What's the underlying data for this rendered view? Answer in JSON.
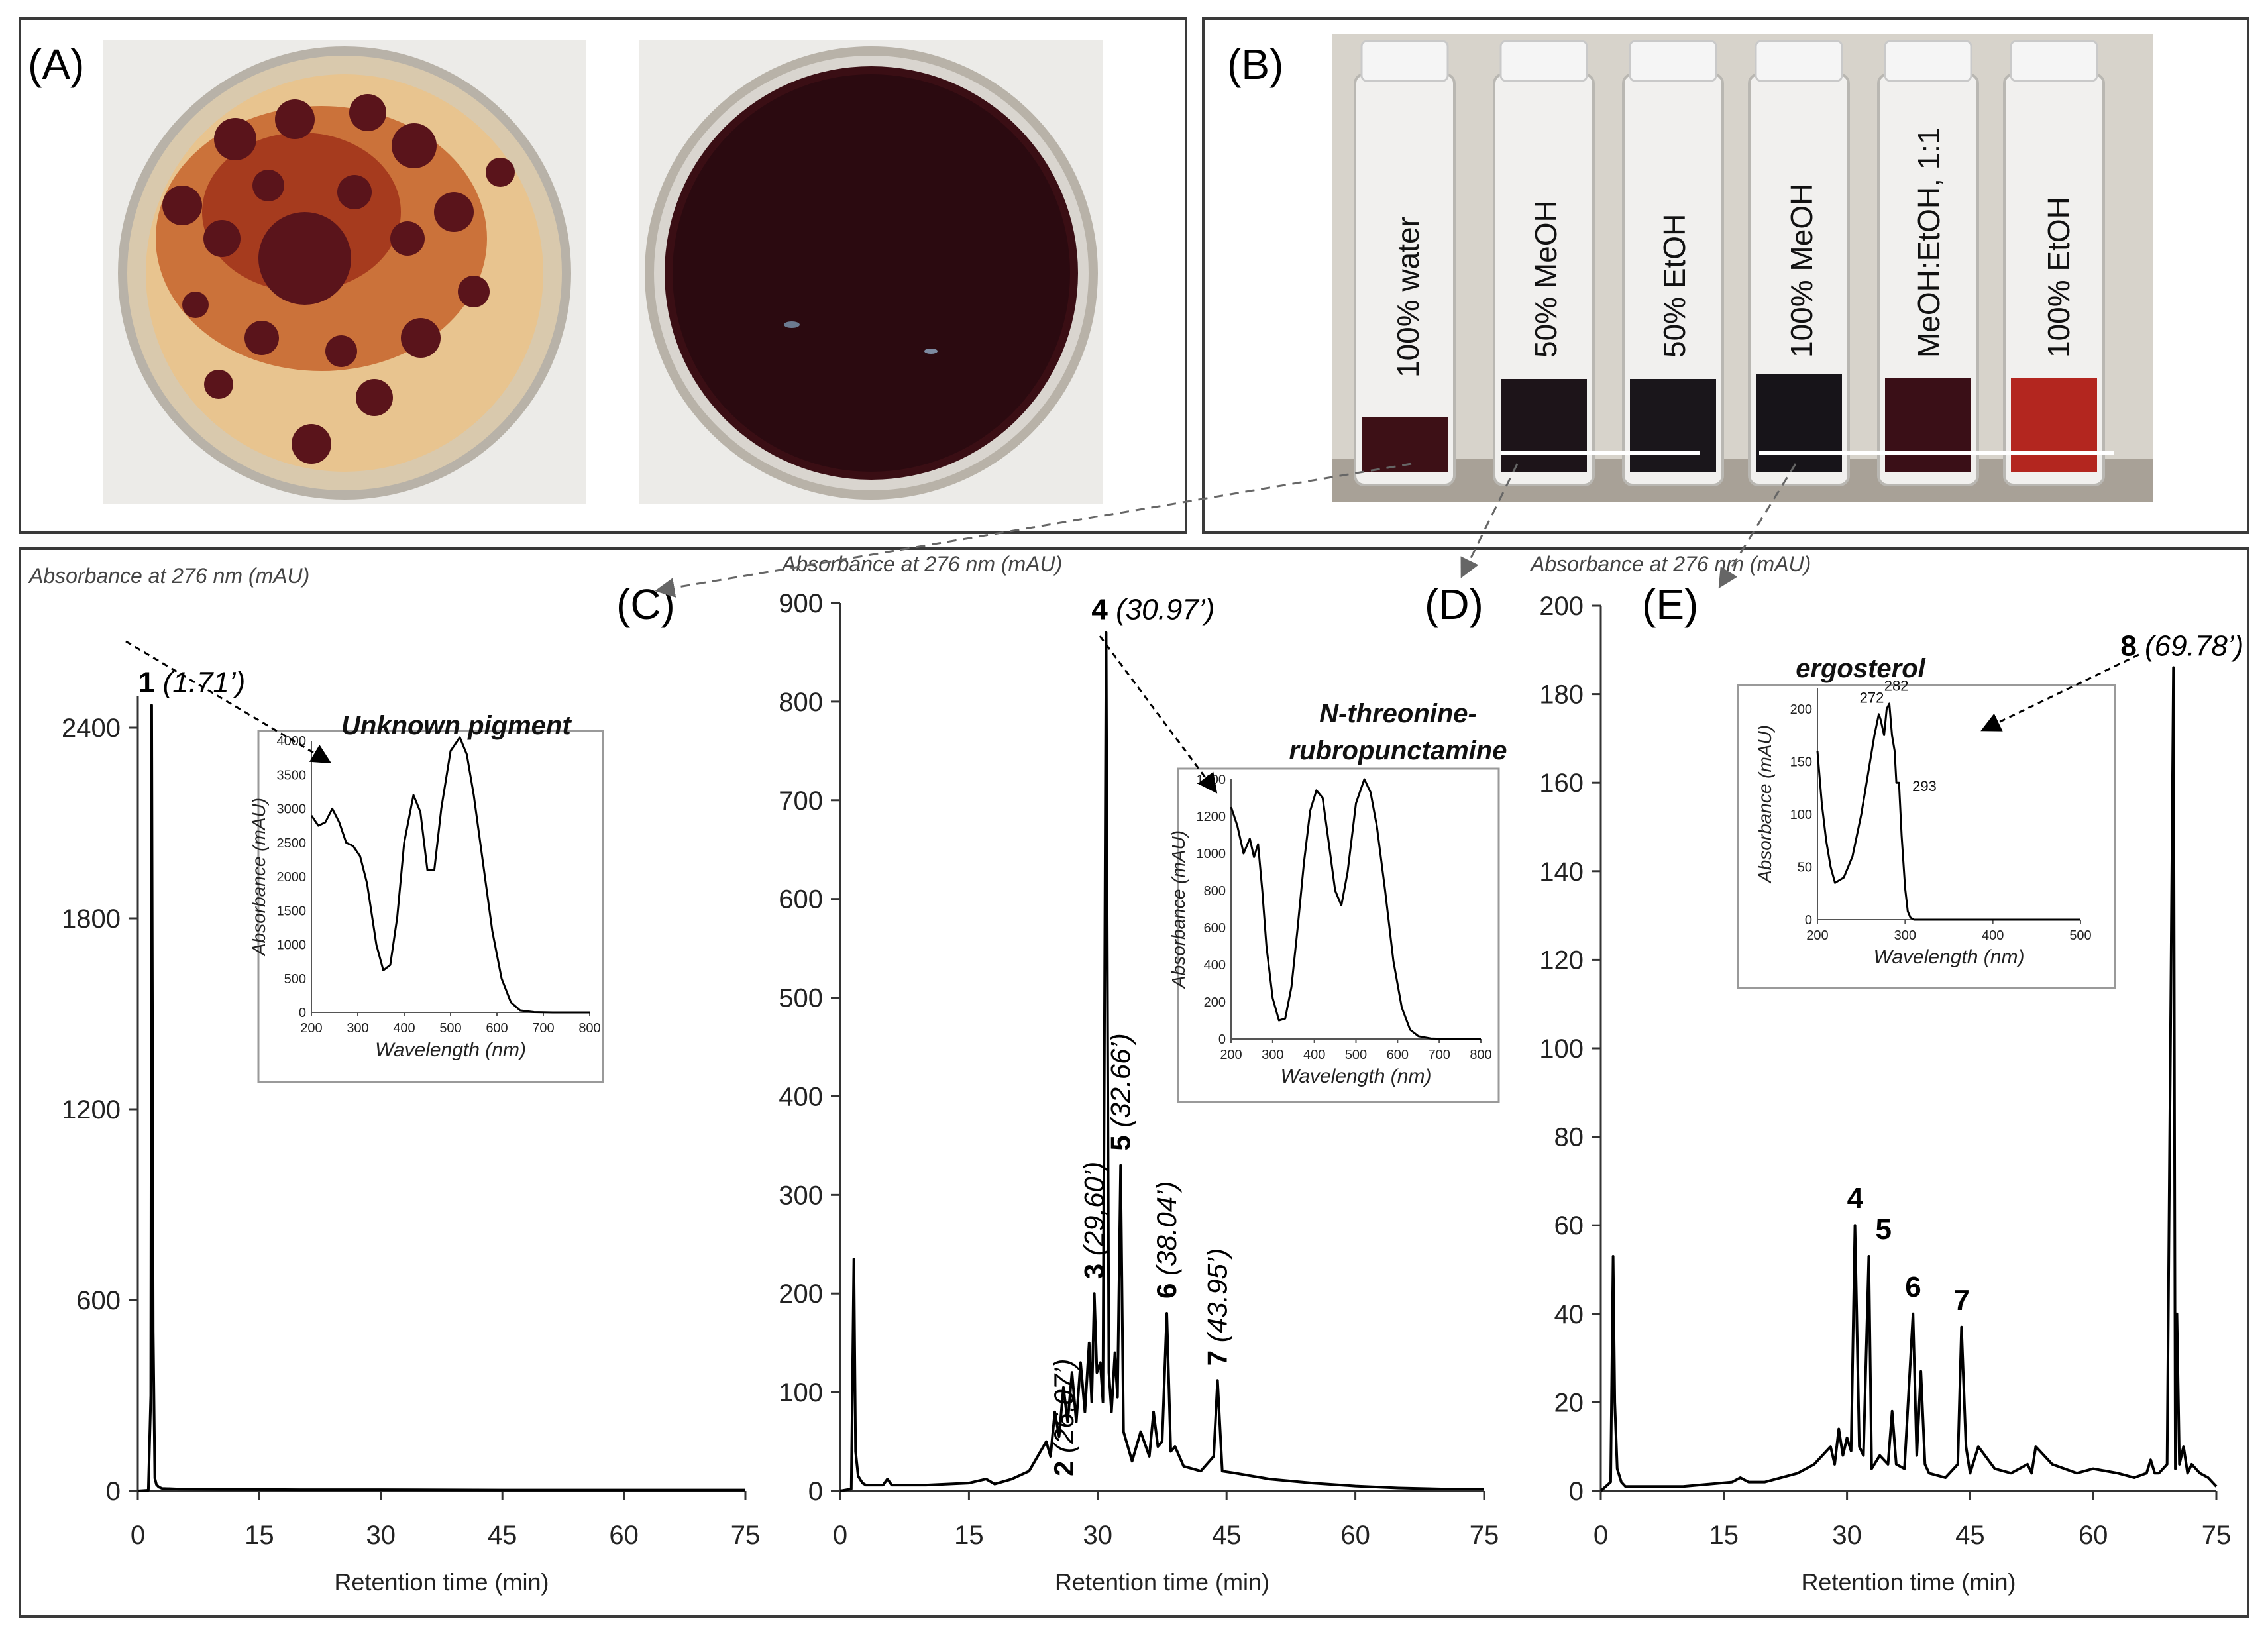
{
  "panels": {
    "A": {
      "label": "(A)"
    },
    "B": {
      "label": "(B)",
      "vials": [
        "100% water",
        "50% MeOH",
        "50% EtOH",
        "100% MeOH",
        "MeOH:EtOH, 1:1",
        "100% EtOH"
      ]
    },
    "C": {
      "label": "(C)"
    },
    "D": {
      "label": "(D)"
    },
    "E": {
      "label": "(E)"
    }
  },
  "colors": {
    "trace": "#000000",
    "frame": "#3a3a3a",
    "arrow": "#555555",
    "vial_dark": "#1a1418",
    "vial_red": "#c0392b"
  },
  "chart_data": [
    {
      "id": "C",
      "type": "line",
      "ylabel": "Absorbance at 276 nm (mAU)",
      "xlabel": "Retention time (min)",
      "xlim": [
        0,
        75
      ],
      "ylim": [
        0,
        2500
      ],
      "xticks": [
        0,
        15,
        30,
        45,
        60,
        75
      ],
      "yticks": [
        0,
        600,
        1200,
        1800,
        2400
      ],
      "series": [
        {
          "x": [
            0,
            1.3,
            1.6,
            1.71,
            1.9,
            2.1,
            2.3,
            2.6,
            3,
            5,
            10,
            20,
            30,
            45,
            60,
            75
          ],
          "y": [
            0,
            2,
            300,
            2470,
            500,
            40,
            20,
            12,
            8,
            6,
            5,
            4,
            4,
            3,
            3,
            3
          ]
        }
      ],
      "annotations": [
        {
          "bold": "1",
          "text": "(1.71’)",
          "x": 1.71
        }
      ],
      "inset": {
        "title": "Unknown pigment",
        "xlabel": "Wavelength (nm)",
        "ylabel": "Absorbance (mAU)",
        "xlim": [
          200,
          800
        ],
        "ylim": [
          0,
          4000
        ],
        "xticks": [
          200,
          300,
          400,
          500,
          600,
          700,
          800
        ],
        "yticks": [
          0,
          500,
          1000,
          1500,
          2000,
          2500,
          3000,
          3500,
          4000
        ],
        "x": [
          200,
          215,
          230,
          245,
          260,
          275,
          290,
          305,
          320,
          340,
          355,
          370,
          385,
          400,
          420,
          435,
          450,
          465,
          480,
          500,
          520,
          535,
          550,
          570,
          590,
          610,
          630,
          650,
          680,
          720,
          760,
          800
        ],
        "y": [
          2900,
          2750,
          2800,
          3000,
          2800,
          2500,
          2450,
          2300,
          1900,
          1000,
          620,
          700,
          1400,
          2500,
          3200,
          2950,
          2100,
          2100,
          3000,
          3850,
          4050,
          3800,
          3200,
          2200,
          1200,
          500,
          150,
          30,
          5,
          0,
          0,
          0
        ]
      }
    },
    {
      "id": "D",
      "type": "line",
      "ylabel": "Absorbance at 276 nm (mAU)",
      "xlabel": "Retention time (min)",
      "xlim": [
        0,
        75
      ],
      "ylim": [
        0,
        900
      ],
      "xticks": [
        0,
        15,
        30,
        45,
        60,
        75
      ],
      "yticks": [
        0,
        100,
        200,
        300,
        400,
        500,
        600,
        700,
        800,
        900
      ],
      "series": [
        {
          "x": [
            0,
            1.3,
            1.6,
            1.8,
            2.1,
            2.6,
            3,
            5,
            5.5,
            6,
            10,
            15,
            17,
            18,
            20,
            22,
            23,
            24,
            24.5,
            25,
            25.5,
            26,
            26.5,
            27,
            27.5,
            28,
            28.5,
            29,
            29.3,
            29.6,
            29.9,
            30.3,
            30.6,
            30.97,
            31.3,
            31.6,
            32,
            32.3,
            32.66,
            33,
            33.5,
            34,
            35,
            36,
            36.5,
            37,
            37.5,
            38.04,
            38.5,
            39,
            40,
            42,
            43.5,
            43.95,
            44.5,
            46,
            50,
            55,
            60,
            65,
            70,
            75
          ],
          "y": [
            0,
            2,
            235,
            40,
            15,
            8,
            6,
            6,
            12,
            6,
            6,
            8,
            12,
            7,
            12,
            20,
            35,
            50,
            35,
            80,
            55,
            105,
            70,
            120,
            70,
            130,
            80,
            150,
            90,
            200,
            120,
            130,
            90,
            870,
            120,
            80,
            140,
            95,
            330,
            60,
            45,
            30,
            60,
            35,
            80,
            45,
            50,
            180,
            40,
            45,
            25,
            20,
            35,
            112,
            20,
            18,
            12,
            8,
            5,
            3,
            2,
            2
          ]
        }
      ],
      "annotations": [
        {
          "bold": "2",
          "text": "(26,07’)",
          "x": 26.07
        },
        {
          "bold": "3",
          "text": "(29,60’)",
          "x": 29.6
        },
        {
          "bold": "4",
          "text": "(30.97’)",
          "x": 30.97
        },
        {
          "bold": "5",
          "text": "(32.66’)",
          "x": 32.66
        },
        {
          "bold": "6",
          "text": "(38.04’)",
          "x": 38.04
        },
        {
          "bold": "7",
          "text": "(43.95’)",
          "x": 43.95
        }
      ],
      "inset": {
        "title_line1": "N-threonine-",
        "title_line2": "rubropunctamine",
        "xlabel": "Wavelength (nm)",
        "ylabel": "Absorbance (mAU)",
        "xlim": [
          200,
          800
        ],
        "ylim": [
          0,
          1400
        ],
        "xticks": [
          200,
          300,
          400,
          500,
          600,
          700,
          800
        ],
        "yticks": [
          0,
          200,
          400,
          600,
          800,
          1000,
          1200,
          1400
        ],
        "x": [
          200,
          215,
          230,
          245,
          255,
          265,
          275,
          285,
          300,
          315,
          330,
          345,
          360,
          375,
          390,
          405,
          420,
          435,
          450,
          465,
          480,
          500,
          520,
          535,
          550,
          570,
          590,
          610,
          630,
          650,
          680,
          720,
          760,
          800
        ],
        "y": [
          1250,
          1150,
          1000,
          1080,
          980,
          1050,
          800,
          500,
          220,
          100,
          110,
          280,
          600,
          950,
          1230,
          1340,
          1300,
          1050,
          800,
          720,
          900,
          1270,
          1400,
          1330,
          1150,
          800,
          420,
          170,
          50,
          15,
          3,
          0,
          0,
          0
        ]
      }
    },
    {
      "id": "E",
      "type": "line",
      "ylabel": "Absorbance at 276 nm (mAU)",
      "xlabel": "Retention time (min)",
      "xlim": [
        0,
        75
      ],
      "ylim": [
        0,
        200
      ],
      "xticks": [
        0,
        15,
        30,
        45,
        60,
        75
      ],
      "yticks": [
        0,
        20,
        40,
        60,
        80,
        100,
        120,
        140,
        160,
        180,
        200
      ],
      "series": [
        {
          "x": [
            0,
            1.2,
            1.5,
            1.7,
            2,
            2.5,
            3,
            5,
            10,
            16,
            17,
            18,
            20,
            24,
            26,
            27,
            28,
            28.5,
            29,
            29.5,
            30,
            30.5,
            30.97,
            31.5,
            32,
            32.66,
            33,
            34,
            35,
            35.5,
            36,
            37,
            38.04,
            38.5,
            39,
            39.5,
            40,
            42,
            43.5,
            43.95,
            44.5,
            45,
            46,
            48,
            50,
            52,
            52.5,
            53,
            55,
            58,
            60,
            63,
            65,
            66.5,
            67,
            67.5,
            68,
            69,
            69.78,
            70,
            70.2,
            70.5,
            71,
            71.5,
            72,
            73,
            74,
            75
          ],
          "y": [
            0,
            2,
            53,
            20,
            5,
            2,
            1,
            1,
            1,
            2,
            3,
            2,
            2,
            4,
            6,
            8,
            10,
            6,
            14,
            8,
            12,
            9,
            60,
            10,
            8,
            53,
            5,
            8,
            6,
            18,
            6,
            5,
            40,
            8,
            27,
            6,
            4,
            3,
            6,
            37,
            10,
            4,
            10,
            5,
            4,
            6,
            4,
            10,
            6,
            4,
            5,
            4,
            3,
            4,
            7,
            4,
            4,
            6,
            186,
            5,
            40,
            6,
            10,
            4,
            6,
            4,
            3,
            1
          ]
        }
      ],
      "annotations": [
        {
          "bold": "4",
          "text": "",
          "x": 30.97
        },
        {
          "bold": "5",
          "text": "",
          "x": 32.66
        },
        {
          "bold": "6",
          "text": "",
          "x": 38.04
        },
        {
          "bold": "7",
          "text": "",
          "x": 43.95
        },
        {
          "bold": "8",
          "text": "(69.78’)",
          "x": 69.78
        }
      ],
      "inset": {
        "title": "ergosterol",
        "xlabel": "Wavelength (nm)",
        "ylabel": "Absorbance (mAU)",
        "xlim": [
          200,
          500
        ],
        "ylim": [
          0,
          220
        ],
        "xticks": [
          200,
          300,
          400,
          500
        ],
        "yticks": [
          0,
          50,
          100,
          150,
          200
        ],
        "peak_labels": [
          "272",
          "282",
          "293"
        ],
        "x": [
          200,
          205,
          210,
          215,
          220,
          230,
          240,
          250,
          260,
          265,
          270,
          272,
          276,
          279,
          282,
          285,
          288,
          290,
          293,
          296,
          300,
          303,
          306,
          310,
          320,
          350,
          400,
          450,
          500
        ],
        "y": [
          160,
          110,
          75,
          50,
          35,
          40,
          60,
          100,
          150,
          175,
          195,
          190,
          175,
          200,
          205,
          175,
          160,
          130,
          130,
          80,
          30,
          8,
          2,
          0,
          0,
          0,
          0,
          0,
          0
        ]
      }
    }
  ]
}
